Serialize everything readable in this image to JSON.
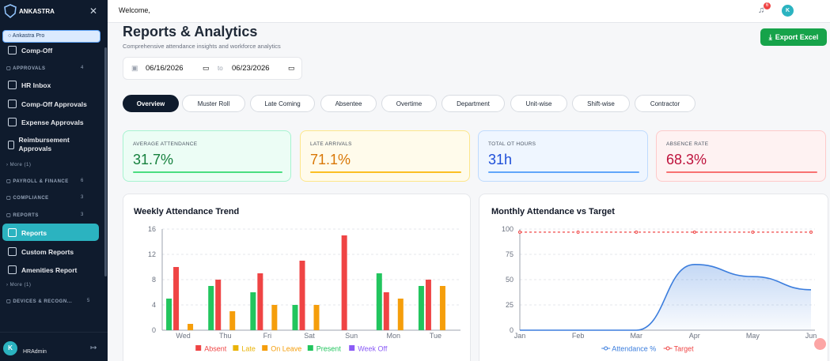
{
  "sidebar": {
    "brand": "ANKASTRA",
    "plan": "Ankastra Pro",
    "items": [
      {
        "label": "Comp-Off"
      },
      {
        "label": "APPROVALS",
        "count": "4"
      },
      {
        "label": "HR Inbox"
      },
      {
        "label": "Comp-Off Approvals"
      },
      {
        "label": "Expense Approvals"
      },
      {
        "label": "Reimbursement Approvals"
      },
      {
        "label": "More (1)"
      },
      {
        "label": "PAYROLL & FINANCE",
        "count": "6"
      },
      {
        "label": "COMPLIANCE",
        "count": "3"
      },
      {
        "label": "REPORTS",
        "count": "3"
      },
      {
        "label": "Reports"
      },
      {
        "label": "Custom Reports"
      },
      {
        "label": "Amenities Report"
      },
      {
        "label": "More (1)"
      },
      {
        "label": "DEVICES & RECOGN...",
        "count": "5"
      }
    ],
    "user": {
      "initial": "K",
      "name": "HRAdmin"
    }
  },
  "header": {
    "welcome": "Welcome,",
    "notifications": "6",
    "avatar": "K"
  },
  "page": {
    "title": "Reports & Analytics",
    "subtitle": "Comprehensive attendance insights and workforce analytics",
    "date_from": "06/16/2026",
    "date_sep": "to",
    "date_to": "06/23/2026",
    "export": "Export Excel"
  },
  "tabs": [
    "Overview",
    "Muster Roll",
    "Late Coming",
    "Absentee",
    "Overtime",
    "Department",
    "Unit-wise",
    "Shift-wise",
    "Contractor"
  ],
  "kpis": [
    {
      "label": "AVERAGE ATTENDANCE",
      "value": "31.7%"
    },
    {
      "label": "LATE ARRIVALS",
      "value": "71.1%"
    },
    {
      "label": "TOTAL OT HOURS",
      "value": "31h"
    },
    {
      "label": "ABSENCE RATE",
      "value": "68.3%"
    }
  ],
  "chart_data": [
    {
      "type": "bar",
      "title": "Weekly Attendance Trend",
      "categories": [
        "Wed",
        "Thu",
        "Fri",
        "Sat",
        "Sun",
        "Mon",
        "Tue"
      ],
      "series": [
        {
          "name": "Absent",
          "color": "#ef4444",
          "values": [
            10,
            8,
            9,
            11,
            15,
            6,
            8
          ]
        },
        {
          "name": "Late",
          "color": "#eab308",
          "values": [
            0,
            0,
            0,
            0,
            0,
            0,
            0
          ]
        },
        {
          "name": "On Leave",
          "color": "#f59e0b",
          "values": [
            1,
            3,
            4,
            4,
            0,
            5,
            7
          ]
        },
        {
          "name": "Present",
          "color": "#22c55e",
          "values": [
            5,
            7,
            6,
            4,
            0,
            9,
            7
          ]
        },
        {
          "name": "Week Off",
          "color": "#8b5cf6",
          "values": [
            0,
            0,
            0,
            0,
            0,
            0,
            0
          ]
        }
      ],
      "ylim": [
        0,
        16
      ],
      "yticks": [
        0,
        4,
        8,
        12,
        16
      ],
      "grid": true
    },
    {
      "type": "line",
      "title": "Monthly Attendance vs Target",
      "categories": [
        "Jan",
        "Feb",
        "Mar",
        "Apr",
        "May",
        "Jun"
      ],
      "series": [
        {
          "name": "Attendance %",
          "color": "#3b7ddd",
          "area": true,
          "values": [
            0,
            0,
            0,
            65,
            53,
            40
          ]
        },
        {
          "name": "Target",
          "color": "#ef4444",
          "dashed": true,
          "values": [
            97,
            97,
            97,
            97,
            97,
            97
          ]
        }
      ],
      "ylim": [
        0,
        100
      ],
      "yticks": [
        0,
        25,
        50,
        75,
        100
      ],
      "grid": true
    }
  ]
}
